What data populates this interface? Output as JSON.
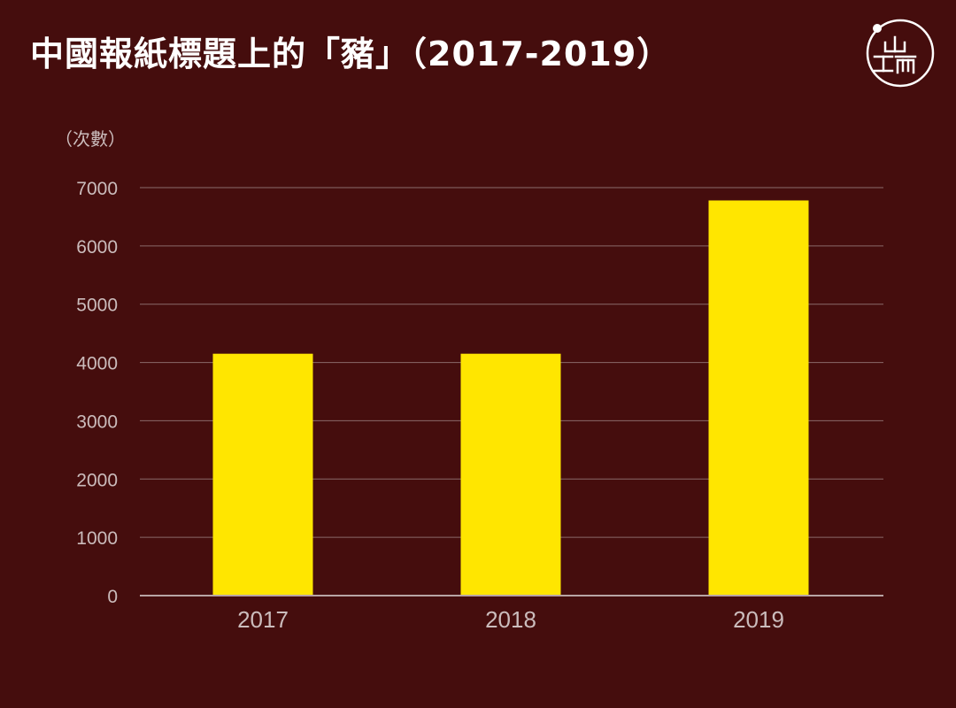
{
  "title": "中國報紙標題上的「豬」（2017-2019）",
  "logo": {
    "icon": "initium-logo-icon"
  },
  "colors": {
    "background": "#450d0d",
    "bar": "#ffe600",
    "grid": "#8a6a6a",
    "tick_text": "#cbbcbc"
  },
  "chart_data": {
    "type": "bar",
    "title": "中國報紙標題上的「豬」（2017-2019）",
    "ylabel": "（次數）",
    "xlabel": "",
    "categories": [
      "2017",
      "2018",
      "2019"
    ],
    "values": [
      4150,
      4150,
      6780
    ],
    "ylim": [
      0,
      7000
    ],
    "yticks": [
      "0",
      "1000",
      "2000",
      "3000",
      "4000",
      "5000",
      "6000",
      "7000"
    ],
    "grid": true,
    "legend": "none"
  }
}
